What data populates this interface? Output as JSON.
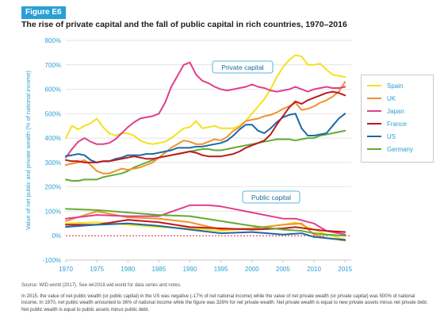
{
  "figure": {
    "tag": "Figure E6",
    "title": "The rise of private capital and the fall of public capital in rich countries, 1970–2016",
    "source": "Source: WID.world (2017). See wir2018.wid.world for data series and notes.",
    "note": "In 2015, the value of net public wealth (or public capital) in the US was negative (-17% of net national income) while the value of net private wealth (or private capital) was 500% of national income. In 1970, net public wealth amounted to 36% of national income while the figure was 326% for net private wealth. Net private wealth is equal to new private assets minus net private debt. Net public wealth is equal to public assets minus public debt."
  },
  "colors": {
    "Spain": "#f5e11b",
    "UK": "#f0922d",
    "Japan": "#e03f8b",
    "France": "#c0171d",
    "US": "#1b6aa5",
    "Germany": "#63ab34",
    "axis_text": "#2a9fd6",
    "zero_line": "#e0203a"
  },
  "chart_data": {
    "type": "line",
    "ylabel": "Value of net public and private wealth (% of national income)",
    "xlim": [
      1970,
      2016
    ],
    "ylim": [
      -100,
      800
    ],
    "x_ticks": [
      1970,
      1975,
      1980,
      1985,
      1990,
      1995,
      2000,
      2005,
      2010,
      2015
    ],
    "y_ticks": [
      -100,
      0,
      100,
      200,
      300,
      400,
      500,
      600,
      700,
      800
    ],
    "y_tick_labels": [
      "-100%",
      "0%",
      "100%",
      "200%",
      "300%",
      "400%",
      "500%",
      "600%",
      "700%",
      "800%"
    ],
    "grid": true,
    "legend_position": "right",
    "annotations": [
      "Private capital",
      "Public capital"
    ],
    "private_capital": [
      {
        "name": "Spain",
        "x": [
          1970,
          1971,
          1972,
          1973,
          1974,
          1975,
          1976,
          1977,
          1978,
          1979,
          1980,
          1981,
          1982,
          1983,
          1984,
          1985,
          1986,
          1987,
          1988,
          1989,
          1990,
          1991,
          1992,
          1993,
          1994,
          1995,
          1996,
          1997,
          1998,
          1999,
          2000,
          2001,
          2002,
          2003,
          2004,
          2005,
          2006,
          2007,
          2008,
          2009,
          2010,
          2011,
          2012,
          2013,
          2014,
          2015
        ],
        "y": [
          400,
          450,
          435,
          450,
          460,
          480,
          445,
          420,
          410,
          420,
          420,
          410,
          390,
          380,
          375,
          380,
          385,
          400,
          420,
          440,
          445,
          470,
          440,
          445,
          450,
          440,
          440,
          440,
          450,
          470,
          500,
          530,
          560,
          600,
          650,
          690,
          720,
          740,
          735,
          700,
          700,
          705,
          680,
          660,
          655,
          650
        ]
      },
      {
        "name": "UK",
        "x": [
          1970,
          1971,
          1972,
          1973,
          1974,
          1975,
          1976,
          1977,
          1978,
          1979,
          1980,
          1981,
          1982,
          1983,
          1984,
          1985,
          1986,
          1987,
          1988,
          1989,
          1990,
          1991,
          1992,
          1993,
          1994,
          1995,
          1996,
          1997,
          1998,
          1999,
          2000,
          2001,
          2002,
          2003,
          2004,
          2005,
          2006,
          2007,
          2008,
          2009,
          2010,
          2011,
          2012,
          2013,
          2014,
          2015
        ],
        "y": [
          290,
          295,
          300,
          310,
          290,
          265,
          255,
          255,
          265,
          275,
          270,
          275,
          280,
          290,
          300,
          320,
          340,
          360,
          375,
          390,
          385,
          375,
          375,
          385,
          395,
          390,
          405,
          430,
          445,
          470,
          475,
          480,
          490,
          495,
          505,
          520,
          530,
          545,
          515,
          520,
          530,
          545,
          555,
          570,
          590,
          630
        ]
      },
      {
        "name": "Japan",
        "x": [
          1970,
          1971,
          1972,
          1973,
          1974,
          1975,
          1976,
          1977,
          1978,
          1979,
          1980,
          1981,
          1982,
          1983,
          1984,
          1985,
          1986,
          1987,
          1988,
          1989,
          1990,
          1991,
          1992,
          1993,
          1994,
          1995,
          1996,
          1997,
          1998,
          1999,
          2000,
          2001,
          2002,
          2003,
          2004,
          2005,
          2006,
          2007,
          2008,
          2009,
          2010,
          2011,
          2012,
          2013,
          2014,
          2015
        ],
        "y": [
          320,
          355,
          385,
          400,
          385,
          375,
          375,
          380,
          395,
          420,
          445,
          465,
          480,
          485,
          490,
          500,
          545,
          610,
          655,
          700,
          710,
          660,
          635,
          625,
          610,
          600,
          595,
          600,
          605,
          610,
          620,
          610,
          605,
          595,
          590,
          595,
          600,
          610,
          600,
          590,
          600,
          605,
          610,
          605,
          605,
          610
        ]
      },
      {
        "name": "France",
        "x": [
          1970,
          1971,
          1972,
          1973,
          1974,
          1975,
          1976,
          1977,
          1978,
          1979,
          1980,
          1981,
          1982,
          1983,
          1984,
          1985,
          1986,
          1987,
          1988,
          1989,
          1990,
          1991,
          1992,
          1993,
          1994,
          1995,
          1996,
          1997,
          1998,
          1999,
          2000,
          2001,
          2002,
          2003,
          2004,
          2005,
          2006,
          2007,
          2008,
          2009,
          2010,
          2011,
          2012,
          2013,
          2014,
          2015
        ],
        "y": [
          310,
          305,
          305,
          300,
          300,
          300,
          305,
          305,
          310,
          315,
          320,
          325,
          320,
          315,
          315,
          320,
          325,
          330,
          335,
          340,
          345,
          340,
          330,
          325,
          325,
          325,
          330,
          335,
          345,
          360,
          370,
          380,
          390,
          415,
          455,
          490,
          525,
          550,
          540,
          555,
          565,
          575,
          585,
          590,
          585,
          575
        ]
      },
      {
        "name": "US",
        "x": [
          1970,
          1971,
          1972,
          1973,
          1974,
          1975,
          1976,
          1977,
          1978,
          1979,
          1980,
          1981,
          1982,
          1983,
          1984,
          1985,
          1986,
          1987,
          1988,
          1989,
          1990,
          1991,
          1992,
          1993,
          1994,
          1995,
          1996,
          1997,
          1998,
          1999,
          2000,
          2001,
          2002,
          2003,
          2004,
          2005,
          2006,
          2007,
          2008,
          2009,
          2010,
          2011,
          2012,
          2013,
          2014,
          2015
        ],
        "y": [
          326,
          330,
          335,
          330,
          310,
          300,
          305,
          305,
          315,
          320,
          330,
          330,
          330,
          335,
          335,
          340,
          345,
          350,
          360,
          360,
          360,
          365,
          365,
          370,
          375,
          380,
          390,
          410,
          435,
          455,
          455,
          430,
          420,
          440,
          465,
          485,
          495,
          500,
          440,
          410,
          410,
          415,
          420,
          450,
          480,
          500
        ]
      },
      {
        "name": "Germany",
        "x": [
          1970,
          1971,
          1972,
          1973,
          1974,
          1975,
          1976,
          1977,
          1978,
          1979,
          1980,
          1981,
          1982,
          1983,
          1984,
          1985,
          1986,
          1987,
          1988,
          1989,
          1990,
          1991,
          1992,
          1993,
          1994,
          1995,
          1996,
          1997,
          1998,
          1999,
          2000,
          2001,
          2002,
          2003,
          2004,
          2005,
          2006,
          2007,
          2008,
          2009,
          2010,
          2011,
          2012,
          2013,
          2014,
          2015
        ],
        "y": [
          230,
          225,
          225,
          230,
          230,
          230,
          240,
          245,
          250,
          255,
          265,
          280,
          290,
          300,
          310,
          320,
          325,
          330,
          335,
          340,
          345,
          350,
          355,
          355,
          350,
          350,
          355,
          360,
          365,
          370,
          375,
          380,
          385,
          390,
          395,
          395,
          395,
          390,
          395,
          400,
          400,
          410,
          415,
          420,
          425,
          430
        ]
      }
    ],
    "public_capital": [
      {
        "name": "Spain",
        "x": [
          1970,
          1975,
          1980,
          1985,
          1990,
          1995,
          2000,
          2005,
          2007,
          2010,
          2012,
          2015
        ],
        "y": [
          50,
          55,
          45,
          35,
          30,
          20,
          30,
          45,
          55,
          25,
          5,
          -15
        ]
      },
      {
        "name": "UK",
        "x": [
          1970,
          1975,
          1980,
          1985,
          1990,
          1995,
          2000,
          2005,
          2008,
          2010,
          2012,
          2015
        ],
        "y": [
          60,
          100,
          75,
          70,
          55,
          25,
          30,
          45,
          50,
          5,
          -10,
          -20
        ]
      },
      {
        "name": "Japan",
        "x": [
          1970,
          1975,
          1980,
          1985,
          1990,
          1993,
          1995,
          2000,
          2005,
          2007,
          2010,
          2012,
          2015
        ],
        "y": [
          70,
          85,
          80,
          80,
          125,
          125,
          120,
          95,
          70,
          70,
          50,
          20,
          5
        ]
      },
      {
        "name": "France",
        "x": [
          1970,
          1975,
          1980,
          1985,
          1990,
          1995,
          2000,
          2005,
          2007,
          2010,
          2012,
          2015
        ],
        "y": [
          45,
          45,
          65,
          55,
          35,
          30,
          25,
          30,
          35,
          25,
          20,
          15
        ]
      },
      {
        "name": "US",
        "x": [
          1970,
          1975,
          1980,
          1985,
          1990,
          1995,
          2000,
          2005,
          2008,
          2010,
          2012,
          2015
        ],
        "y": [
          36,
          45,
          50,
          40,
          25,
          10,
          15,
          5,
          10,
          -5,
          -10,
          -17
        ]
      },
      {
        "name": "Germany",
        "x": [
          1970,
          1975,
          1980,
          1985,
          1990,
          1995,
          2000,
          2005,
          2008,
          2010,
          2012,
          2015
        ],
        "y": [
          110,
          105,
          95,
          85,
          80,
          60,
          40,
          25,
          20,
          10,
          5,
          0
        ]
      }
    ]
  }
}
